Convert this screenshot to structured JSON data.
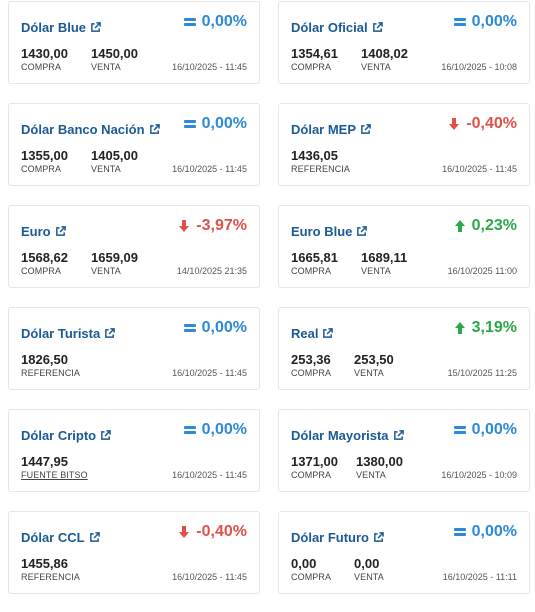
{
  "colors": {
    "title": "#1a5a96",
    "neutral": "#2c8ad8",
    "down": "#e0514b",
    "up": "#2ba84a"
  },
  "cards": [
    {
      "title": "Dólar Blue",
      "change": "0,00%",
      "trend": "neutral",
      "v1": "1430,00",
      "l1": "COMPRA",
      "v2": "1450,00",
      "l2": "VENTA",
      "date": "16/10/2025 - 11:45"
    },
    {
      "title": "Dólar Oficial",
      "change": "0,00%",
      "trend": "neutral",
      "v1": "1354,61",
      "l1": "COMPRA",
      "v2": "1408,02",
      "l2": "VENTA",
      "date": "16/10/2025 - 10:08"
    },
    {
      "title": "Dólar Banco Nación",
      "change": "0,00%",
      "trend": "neutral",
      "v1": "1355,00",
      "l1": "COMPRA",
      "v2": "1405,00",
      "l2": "VENTA",
      "date": "16/10/2025 - 11:45"
    },
    {
      "title": "Dólar MEP",
      "change": "-0,40%",
      "trend": "down",
      "v1": "1436,05",
      "l1": "REFERENCIA",
      "date": "16/10/2025 - 11:45"
    },
    {
      "title": "Euro",
      "change": "-3,97%",
      "trend": "down",
      "v1": "1568,62",
      "l1": "COMPRA",
      "v2": "1659,09",
      "l2": "VENTA",
      "date": "14/10/2025 21:35"
    },
    {
      "title": "Euro Blue",
      "change": "0,23%",
      "trend": "up",
      "v1": "1665,81",
      "l1": "COMPRA",
      "v2": "1689,11",
      "l2": "VENTA",
      "date": "16/10/2025 11:00"
    },
    {
      "title": "Dólar Turista",
      "change": "0,00%",
      "trend": "neutral",
      "v1": "1826,50",
      "l1": "REFERENCIA",
      "date": "16/10/2025 - 11:45"
    },
    {
      "title": "Real",
      "change": "3,19%",
      "trend": "up",
      "v1": "253,36",
      "l1": "COMPRA",
      "v2": "253,50",
      "l2": "VENTA",
      "date": "15/10/2025 11:25"
    },
    {
      "title": "Dólar Cripto",
      "change": "0,00%",
      "trend": "neutral",
      "v1": "1447,95",
      "l1": "FUENTE BITSO",
      "date": "16/10/2025 - 11:45"
    },
    {
      "title": "Dólar Mayorista",
      "change": "0,00%",
      "trend": "neutral",
      "v1": "1371,00",
      "l1": "COMPRA",
      "v2": "1380,00",
      "l2": "VENTA",
      "date": "16/10/2025 - 10:09"
    },
    {
      "title": "Dólar CCL",
      "change": "-0,40%",
      "trend": "down",
      "v1": "1455,86",
      "l1": "REFERENCIA",
      "date": "16/10/2025 - 11:45"
    },
    {
      "title": "Dólar Futuro",
      "change": "0,00%",
      "trend": "neutral",
      "v1": "0,00",
      "l1": "COMPRA",
      "v2": "0,00",
      "l2": "VENTA",
      "date": "16/10/2025 - 11:11"
    }
  ]
}
